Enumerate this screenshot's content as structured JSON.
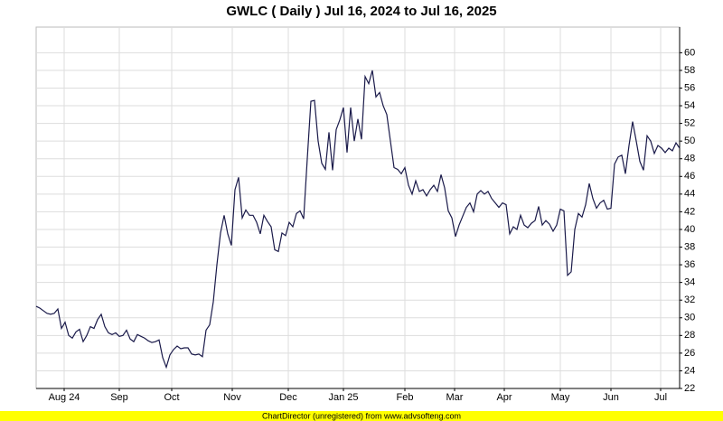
{
  "chart_data": {
    "type": "line",
    "title": "GWLC ( Daily ) Jul 16, 2024 to Jul 16, 2025",
    "footer": "ChartDirector (unregistered) from www.advsofteng.com",
    "color": "#1a1a4a",
    "grid": true,
    "y_axis_side": "right",
    "xlim": [
      0,
      178
    ],
    "xticks": [
      {
        "value": 7.75,
        "label": "Aug 24"
      },
      {
        "value": 23,
        "label": "Sep"
      },
      {
        "value": 37.5,
        "label": "Oct"
      },
      {
        "value": 54.25,
        "label": "Nov"
      },
      {
        "value": 69.75,
        "label": "Dec"
      },
      {
        "value": 85,
        "label": "Jan 25"
      },
      {
        "value": 102,
        "label": "Feb"
      },
      {
        "value": 115.75,
        "label": "Mar"
      },
      {
        "value": 129.5,
        "label": "Apr"
      },
      {
        "value": 145,
        "label": "May"
      },
      {
        "value": 159,
        "label": "Jun"
      },
      {
        "value": 172.75,
        "label": "Jul"
      }
    ],
    "ylim": [
      22,
      62.9
    ],
    "yticks": [
      22,
      24,
      26,
      28,
      30,
      32,
      34,
      36,
      38,
      40,
      42,
      44,
      46,
      48,
      50,
      52,
      54,
      56,
      58,
      60
    ],
    "values": [
      31.3,
      31.1,
      30.8,
      30.5,
      30.4,
      30.5,
      31,
      28.8,
      29.5,
      28,
      27.7,
      28.4,
      28.7,
      27.3,
      28,
      29,
      28.8,
      29.8,
      30.4,
      29,
      28.3,
      28.1,
      28.3,
      27.9,
      28,
      28.6,
      27.6,
      27.3,
      28.1,
      27.9,
      27.7,
      27.4,
      27.2,
      27.3,
      27.5,
      25.5,
      24.4,
      25.8,
      26.4,
      26.8,
      26.5,
      26.6,
      26.6,
      25.9,
      25.8,
      25.9,
      25.6,
      28.6,
      29.2,
      31.8,
      36,
      39.6,
      41.6,
      39.5,
      38.2,
      44.5,
      45.9,
      41.3,
      42.2,
      41.6,
      41.6,
      40.8,
      39.5,
      41.6,
      40.9,
      40.3,
      37.7,
      37.5,
      39.6,
      39.3,
      40.8,
      40.3,
      41.8,
      42.1,
      41.2,
      48,
      54.5,
      54.6,
      50,
      47.5,
      46.8,
      51,
      46.7,
      51.3,
      52.4,
      53.8,
      48.7,
      53.8,
      50,
      52.5,
      50.2,
      57.3,
      56.5,
      58,
      55,
      55.5,
      54,
      53,
      50,
      47,
      46.8,
      46.3,
      47,
      45,
      44,
      45.5,
      44.3,
      44.5,
      43.8,
      44.5,
      45,
      44.3,
      46.2,
      44.7,
      42.1,
      41.3,
      39.2,
      40.5,
      41.5,
      42.5,
      43,
      42,
      44,
      44.4,
      44,
      44.3,
      43.5,
      43,
      42.5,
      43,
      42.8,
      39.5,
      40.3,
      40,
      41.6,
      40.5,
      40.2,
      40.7,
      41,
      42.6,
      40.5,
      41,
      40.6,
      39.8,
      40.5,
      42.3,
      42.1,
      34.8,
      35.2,
      40,
      41.8,
      41.4,
      42.8,
      45.2,
      43.5,
      42.4,
      43,
      43.3,
      42.3,
      42.4,
      47.4,
      48.2,
      48.4,
      46.3,
      49.5,
      52.2,
      50,
      47.7,
      46.7,
      50.6,
      50,
      48.6,
      49.5,
      49.2,
      48.7,
      49.2,
      48.9,
      49.8,
      49.2
    ]
  }
}
